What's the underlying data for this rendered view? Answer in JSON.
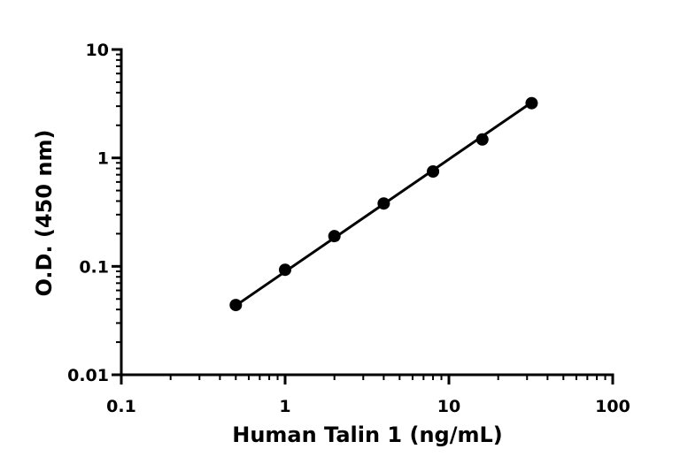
{
  "chart_data": {
    "type": "line",
    "title": "",
    "xlabel": "Human Talin 1 (ng/mL)",
    "ylabel": "O.D. (450 nm)",
    "xscale": "log",
    "yscale": "log",
    "xlim": [
      0.1,
      100
    ],
    "ylim": [
      0.01,
      10
    ],
    "grid": false,
    "x_ticks": [
      "0.1",
      "1",
      "10",
      "100"
    ],
    "y_ticks": [
      "0.01",
      "0.1",
      "1",
      "10"
    ],
    "x_tick_values": [
      0.1,
      1,
      10,
      100
    ],
    "y_tick_values": [
      0.01,
      0.1,
      1,
      10
    ],
    "series": [
      {
        "x": [
          0.5,
          1,
          2,
          4,
          8,
          16,
          32
        ],
        "y": [
          0.044,
          0.093,
          0.19,
          0.38,
          0.75,
          1.48,
          3.2
        ],
        "fit": [
          [
            0.5,
            0.0435
          ],
          [
            32,
            3.25
          ]
        ],
        "color": "#000000"
      }
    ]
  }
}
